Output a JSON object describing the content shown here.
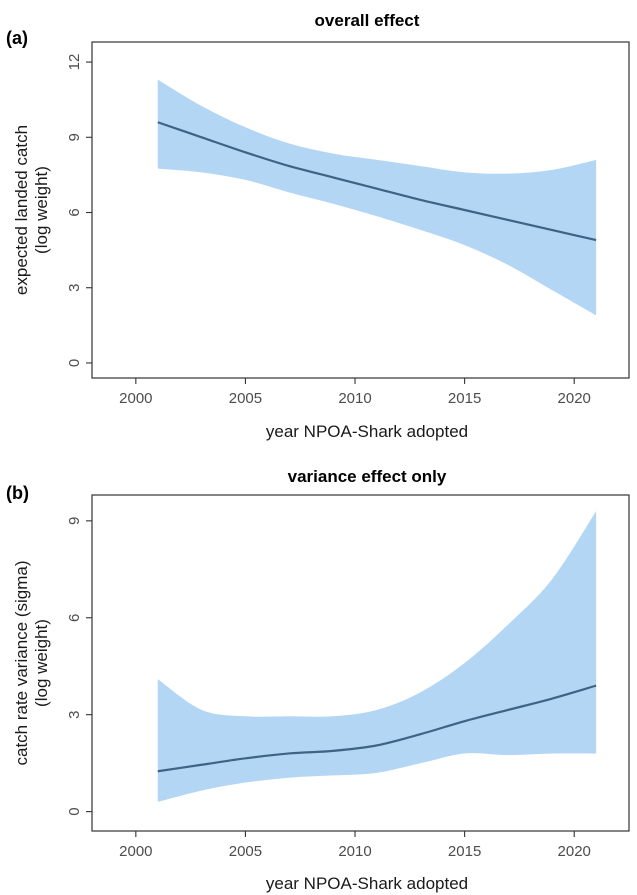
{
  "chart_data": [
    {
      "type": "line",
      "tag": "(a)",
      "title": "overall effect",
      "xlabel": "year NPOA-Shark adopted",
      "ylabel": [
        "expected landed catch",
        "(log weight)"
      ],
      "xlim": [
        1998,
        2022.5
      ],
      "ylim": [
        -0.6,
        12.8
      ],
      "xticks": [
        2000,
        2005,
        2010,
        2015,
        2020
      ],
      "yticks": [
        0,
        3,
        6,
        9,
        12
      ],
      "grid": false,
      "band_color": "#b3d6f5",
      "line_color": "#3d6485",
      "x": [
        2001,
        2003,
        2005,
        2007,
        2009,
        2011,
        2013,
        2015,
        2017,
        2019,
        2021
      ],
      "mean": [
        9.6,
        9.0,
        8.4,
        7.85,
        7.4,
        6.95,
        6.5,
        6.1,
        5.7,
        5.3,
        4.9
      ],
      "lower": [
        7.75,
        7.6,
        7.3,
        6.8,
        6.35,
        5.85,
        5.3,
        4.7,
        3.9,
        2.9,
        1.9
      ],
      "upper": [
        11.3,
        10.25,
        9.4,
        8.75,
        8.35,
        8.1,
        7.85,
        7.6,
        7.55,
        7.7,
        8.1
      ]
    },
    {
      "type": "line",
      "tag": "(b)",
      "title": "variance effect only",
      "xlabel": "year NPOA-Shark adopted",
      "ylabel": [
        "catch rate variance (sigma)",
        "(log weight)"
      ],
      "xlim": [
        1998,
        2022.5
      ],
      "ylim": [
        -0.6,
        9.8
      ],
      "xticks": [
        2000,
        2005,
        2010,
        2015,
        2020
      ],
      "yticks": [
        0,
        3,
        6,
        9
      ],
      "grid": false,
      "band_color": "#b3d6f5",
      "line_color": "#3d6485",
      "x": [
        2001,
        2003,
        2005,
        2007,
        2009,
        2011,
        2013,
        2015,
        2017,
        2019,
        2021
      ],
      "mean": [
        1.25,
        1.45,
        1.65,
        1.8,
        1.88,
        2.05,
        2.4,
        2.8,
        3.15,
        3.5,
        3.9
      ],
      "lower": [
        0.3,
        0.65,
        0.9,
        1.05,
        1.12,
        1.2,
        1.5,
        1.8,
        1.75,
        1.8,
        1.8
      ],
      "upper": [
        4.1,
        3.15,
        2.95,
        2.95,
        2.95,
        3.15,
        3.7,
        4.6,
        5.8,
        7.2,
        9.3
      ]
    }
  ]
}
